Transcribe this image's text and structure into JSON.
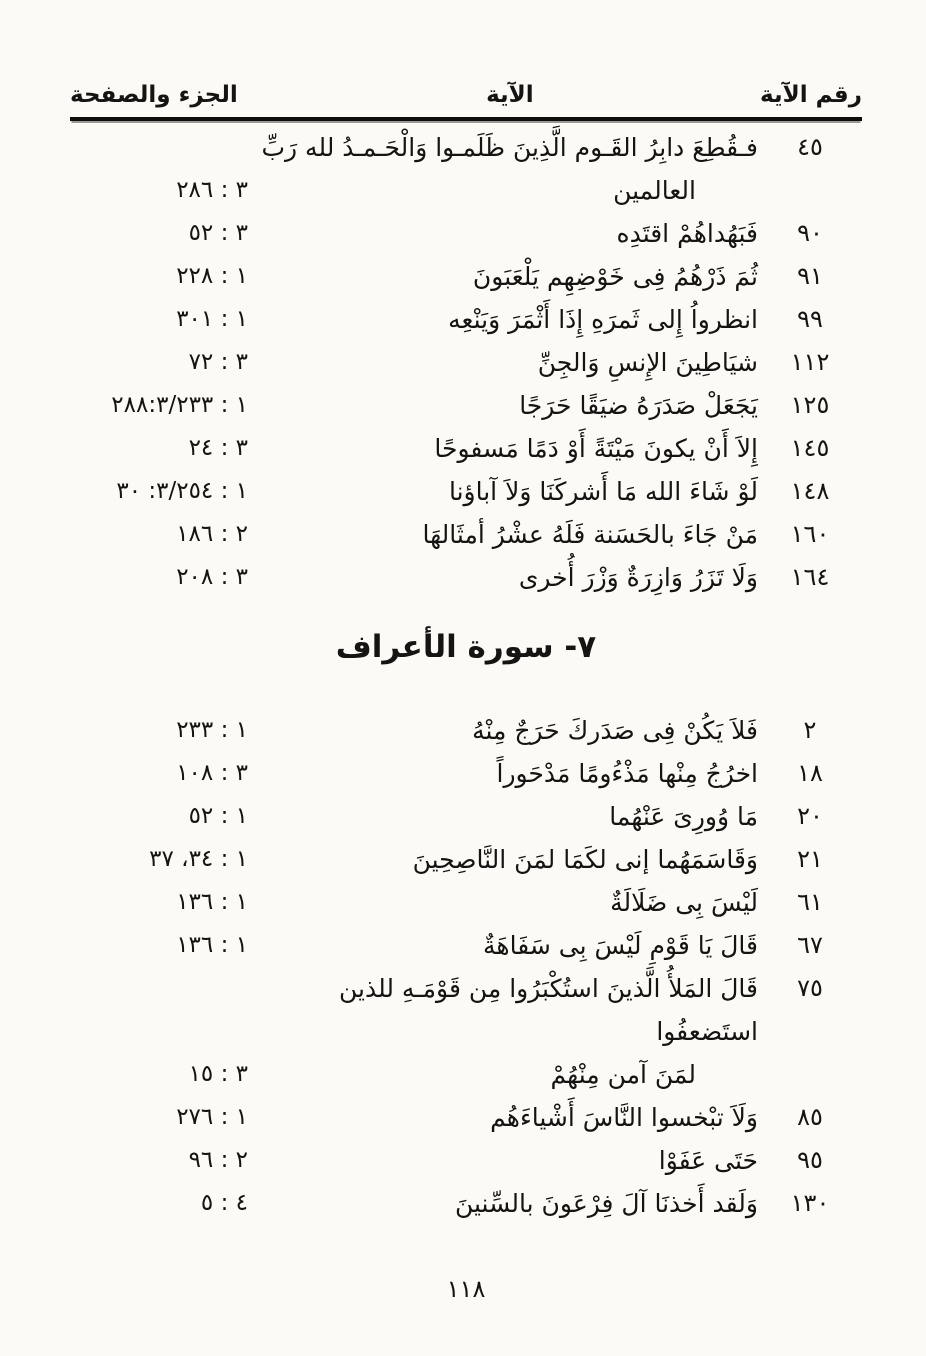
{
  "header": {
    "col_juz_page": "الجزء والصفحة",
    "col_verse": "الآية",
    "col_verse_number": "رقم الآية"
  },
  "section_heading": "٧- سورة الأعراف",
  "page_number": "١١٨",
  "tables": {
    "anaam": {
      "rows": [
        {
          "num": "٤٥",
          "line1": "فـقُطِعَ دابِرُ القَـوم الَّذِينَ ظَلَمـوا وَالْحَـمـدُ لله رَبِّ",
          "line2": "العالمين",
          "ref": "٢٨٦ : ٣"
        },
        {
          "num": "٩٠",
          "line1": "فَبَهُداهُمْ اقتَدِه",
          "ref": "٥٢ : ٣"
        },
        {
          "num": "٩١",
          "line1": "ثُمَ ذَرْهُمُ فِى خَوْضِهِم يَلْعَبَونَ",
          "ref": "٢٢٨ : ١"
        },
        {
          "num": "٩٩",
          "line1": "انظرواُ إِلى ثَمرَهِ إِذَا أَثْمَرَ وَيَنْعِه",
          "ref": "٣٠١ : ١"
        },
        {
          "num": "١١٢",
          "line1": "شيَاطِينَ الإِنسِ وَالجِنِّ",
          "ref": "٧٢ : ٣"
        },
        {
          "num": "١٢٥",
          "line1": "يَجَعَلْ صَدَرَهُ ضيَقًا حَرَجًا",
          "ref": "٢٨٨:٣/٢٣٣ : ١"
        },
        {
          "num": "١٤٥",
          "line1": "إِلاَ أَنْ يكونَ مَيْتَةً أَوْ دَمًا مَسفوحًا",
          "ref": "٢٤ : ٣"
        },
        {
          "num": "١٤٨",
          "line1": "لَوْ شَاءَ الله مَا أَشركَنَا وَلاَ آباؤنا",
          "ref": "٣٠ :٣/٢٥٤ : ١"
        },
        {
          "num": "١٦٠",
          "line1": "مَنْ جَاءَ بالحَسَنة فَلَهُ عشْرُ أمثَالهَا",
          "ref": "١٨٦ : ٢"
        },
        {
          "num": "١٦٤",
          "line1": "وَلَا تَزَرُ وَازِرَةٌ وَزْرَ أُخرى",
          "ref": "٢٠٨ : ٣"
        }
      ]
    },
    "araf": {
      "rows": [
        {
          "num": "٢",
          "line1": "فَلاَ يَكُنْ فِى صَدَركَ حَرَجٌ مِنْهُ",
          "ref": "٢٣٣ : ١"
        },
        {
          "num": "١٨",
          "line1": "اخرُجُ مِنْها مَذْءُومًا مَدْحَوراً",
          "ref": "١٠٨ : ٣"
        },
        {
          "num": "٢٠",
          "line1": "مَا وُورِىَ عَنْهُما",
          "ref": "٥٢ : ١"
        },
        {
          "num": "٢١",
          "line1": "وَقَاسَمَهُما إنى لكَمَا لمَنَ النَّاصِحِينَ",
          "ref": "٣٧ ،٣٤ : ١"
        },
        {
          "num": "٦١",
          "line1": "لَيْسَ بِى ضَلَالَةٌ",
          "ref": "١٣٦ : ١"
        },
        {
          "num": "٦٧",
          "line1": "قَالَ يَا قَوْمِ لَيْسَ بِى سَفَاهَةٌ",
          "ref": "١٣٦ : ١"
        },
        {
          "num": "٧٥",
          "line1": "قَالَ المَلأُ الَّذينَ استُكْبَرُوا مِن قَوْمَـهِ للذين استَضعفُوا",
          "line2": "لمَنَ آمن مِنْهُمْ",
          "ref": "١٥ : ٣"
        },
        {
          "num": "٨٥",
          "line1": "وَلَاَ تبْخسوا النَّاسَ أَشْياءَهُم",
          "ref": "٢٧٦ : ١"
        },
        {
          "num": "٩٥",
          "line1": "حَتَى عَفَوْا",
          "ref": "٩٦ : ٢"
        },
        {
          "num": "١٣٠",
          "line1": "وَلَقد أَخذنَا آلَ فِرْعَونَ بالسِّنينَ",
          "ref": "٥ : ٤"
        }
      ]
    }
  }
}
